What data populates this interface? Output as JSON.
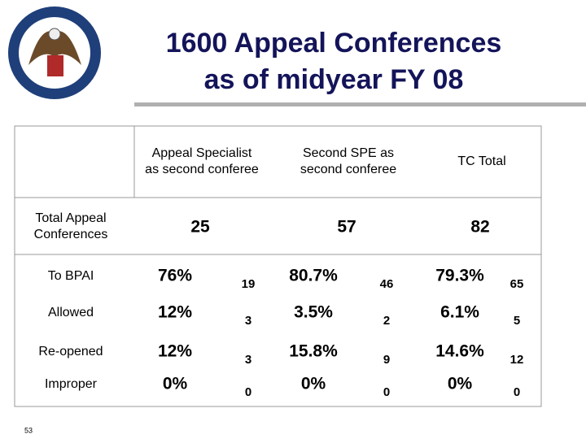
{
  "header": {
    "title_lines": [
      "1600 Appeal Conferences",
      "as of midyear FY 08"
    ]
  },
  "table": {
    "columns": [
      [
        "Appeal Specialist",
        "as second conferee"
      ],
      [
        "Second SPE as",
        "second conferee"
      ],
      [
        "TC Total"
      ]
    ],
    "total_row": {
      "label": [
        "Total Appeal",
        "Conferences"
      ],
      "values": [
        25,
        57,
        82
      ]
    },
    "rows": [
      {
        "label": "To BPAI",
        "cells": [
          [
            "76%",
            19
          ],
          [
            "80.7%",
            46
          ],
          [
            "79.3%",
            65
          ]
        ]
      },
      {
        "label": "Allowed",
        "cells": [
          [
            "12%",
            3
          ],
          [
            "3.5%",
            2
          ],
          [
            "6.1%",
            5
          ]
        ]
      },
      {
        "label": "Re-opened",
        "cells": [
          [
            "12%",
            3
          ],
          [
            "15.8%",
            9
          ],
          [
            "14.6%",
            12
          ]
        ]
      },
      {
        "label": "Improper",
        "cells": [
          [
            "0%",
            0
          ],
          [
            "0%",
            0
          ],
          [
            "0%",
            0
          ]
        ]
      }
    ]
  },
  "page_number": "53"
}
